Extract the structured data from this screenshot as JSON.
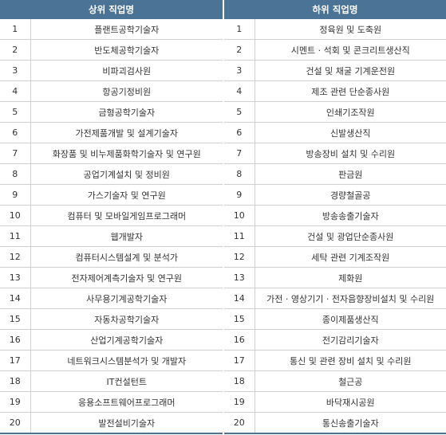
{
  "headers": {
    "upper": "상위 직업명",
    "lower": "하위 직업명"
  },
  "rows": [
    {
      "rank": "1",
      "upper": "플랜트공학기술자",
      "lower": "정육원 및 도축원"
    },
    {
      "rank": "2",
      "upper": "반도체공학기술자",
      "lower": "시멘트 · 석회 및 콘크리트생산직"
    },
    {
      "rank": "3",
      "upper": "비파괴검사원",
      "lower": "건설 및 채굴 기계운전원"
    },
    {
      "rank": "4",
      "upper": "항공기정비원",
      "lower": "제조 관련 단순종사원"
    },
    {
      "rank": "5",
      "upper": "금형공학기술자",
      "lower": "인쇄기조작원"
    },
    {
      "rank": "6",
      "upper": "가전제품개발 및 설계기술자",
      "lower": "신발생산직"
    },
    {
      "rank": "7",
      "upper": "화장품 및 비누제품화학기술자 및 연구원",
      "lower": "방송장비 설치 및 수리원"
    },
    {
      "rank": "8",
      "upper": "공업기계설치 및 정비원",
      "lower": "판금원"
    },
    {
      "rank": "9",
      "upper": "가스기술자 및 연구원",
      "lower": "경량철골공"
    },
    {
      "rank": "10",
      "upper": "컴퓨터 및 모바일게임프로그래머",
      "lower": "방송송출기술자"
    },
    {
      "rank": "11",
      "upper": "웹개발자",
      "lower": "건설 및 광업단순종사원"
    },
    {
      "rank": "12",
      "upper": "컴퓨터시스템설계 및 분석가",
      "lower": "세탁 관련 기계조작원"
    },
    {
      "rank": "13",
      "upper": "전자제어계측기술자 및 연구원",
      "lower": "제화원"
    },
    {
      "rank": "14",
      "upper": "사무용기계공학기술자",
      "lower": "가전 · 영상기기 · 전자음향장비설치 및 수리원"
    },
    {
      "rank": "15",
      "upper": "자동차공학기술자",
      "lower": "종이제품생산직"
    },
    {
      "rank": "16",
      "upper": "산업기계공학기술자",
      "lower": "전기감리기술자"
    },
    {
      "rank": "17",
      "upper": "네트워크시스템분석가 및 개발자",
      "lower": "통신 및 관련 장비 설치 및 수리원"
    },
    {
      "rank": "18",
      "upper": "IT컨설턴트",
      "lower": "철근공"
    },
    {
      "rank": "19",
      "upper": "응용소프트웨어프로그래머",
      "lower": "바닥재시공원"
    },
    {
      "rank": "20",
      "upper": "발전설비기술자",
      "lower": "통신송출기술자"
    }
  ],
  "colors": {
    "header_bg": "#4a7395",
    "header_text": "#ffffff",
    "row_line": "#cfcfcf",
    "text": "#333333"
  }
}
